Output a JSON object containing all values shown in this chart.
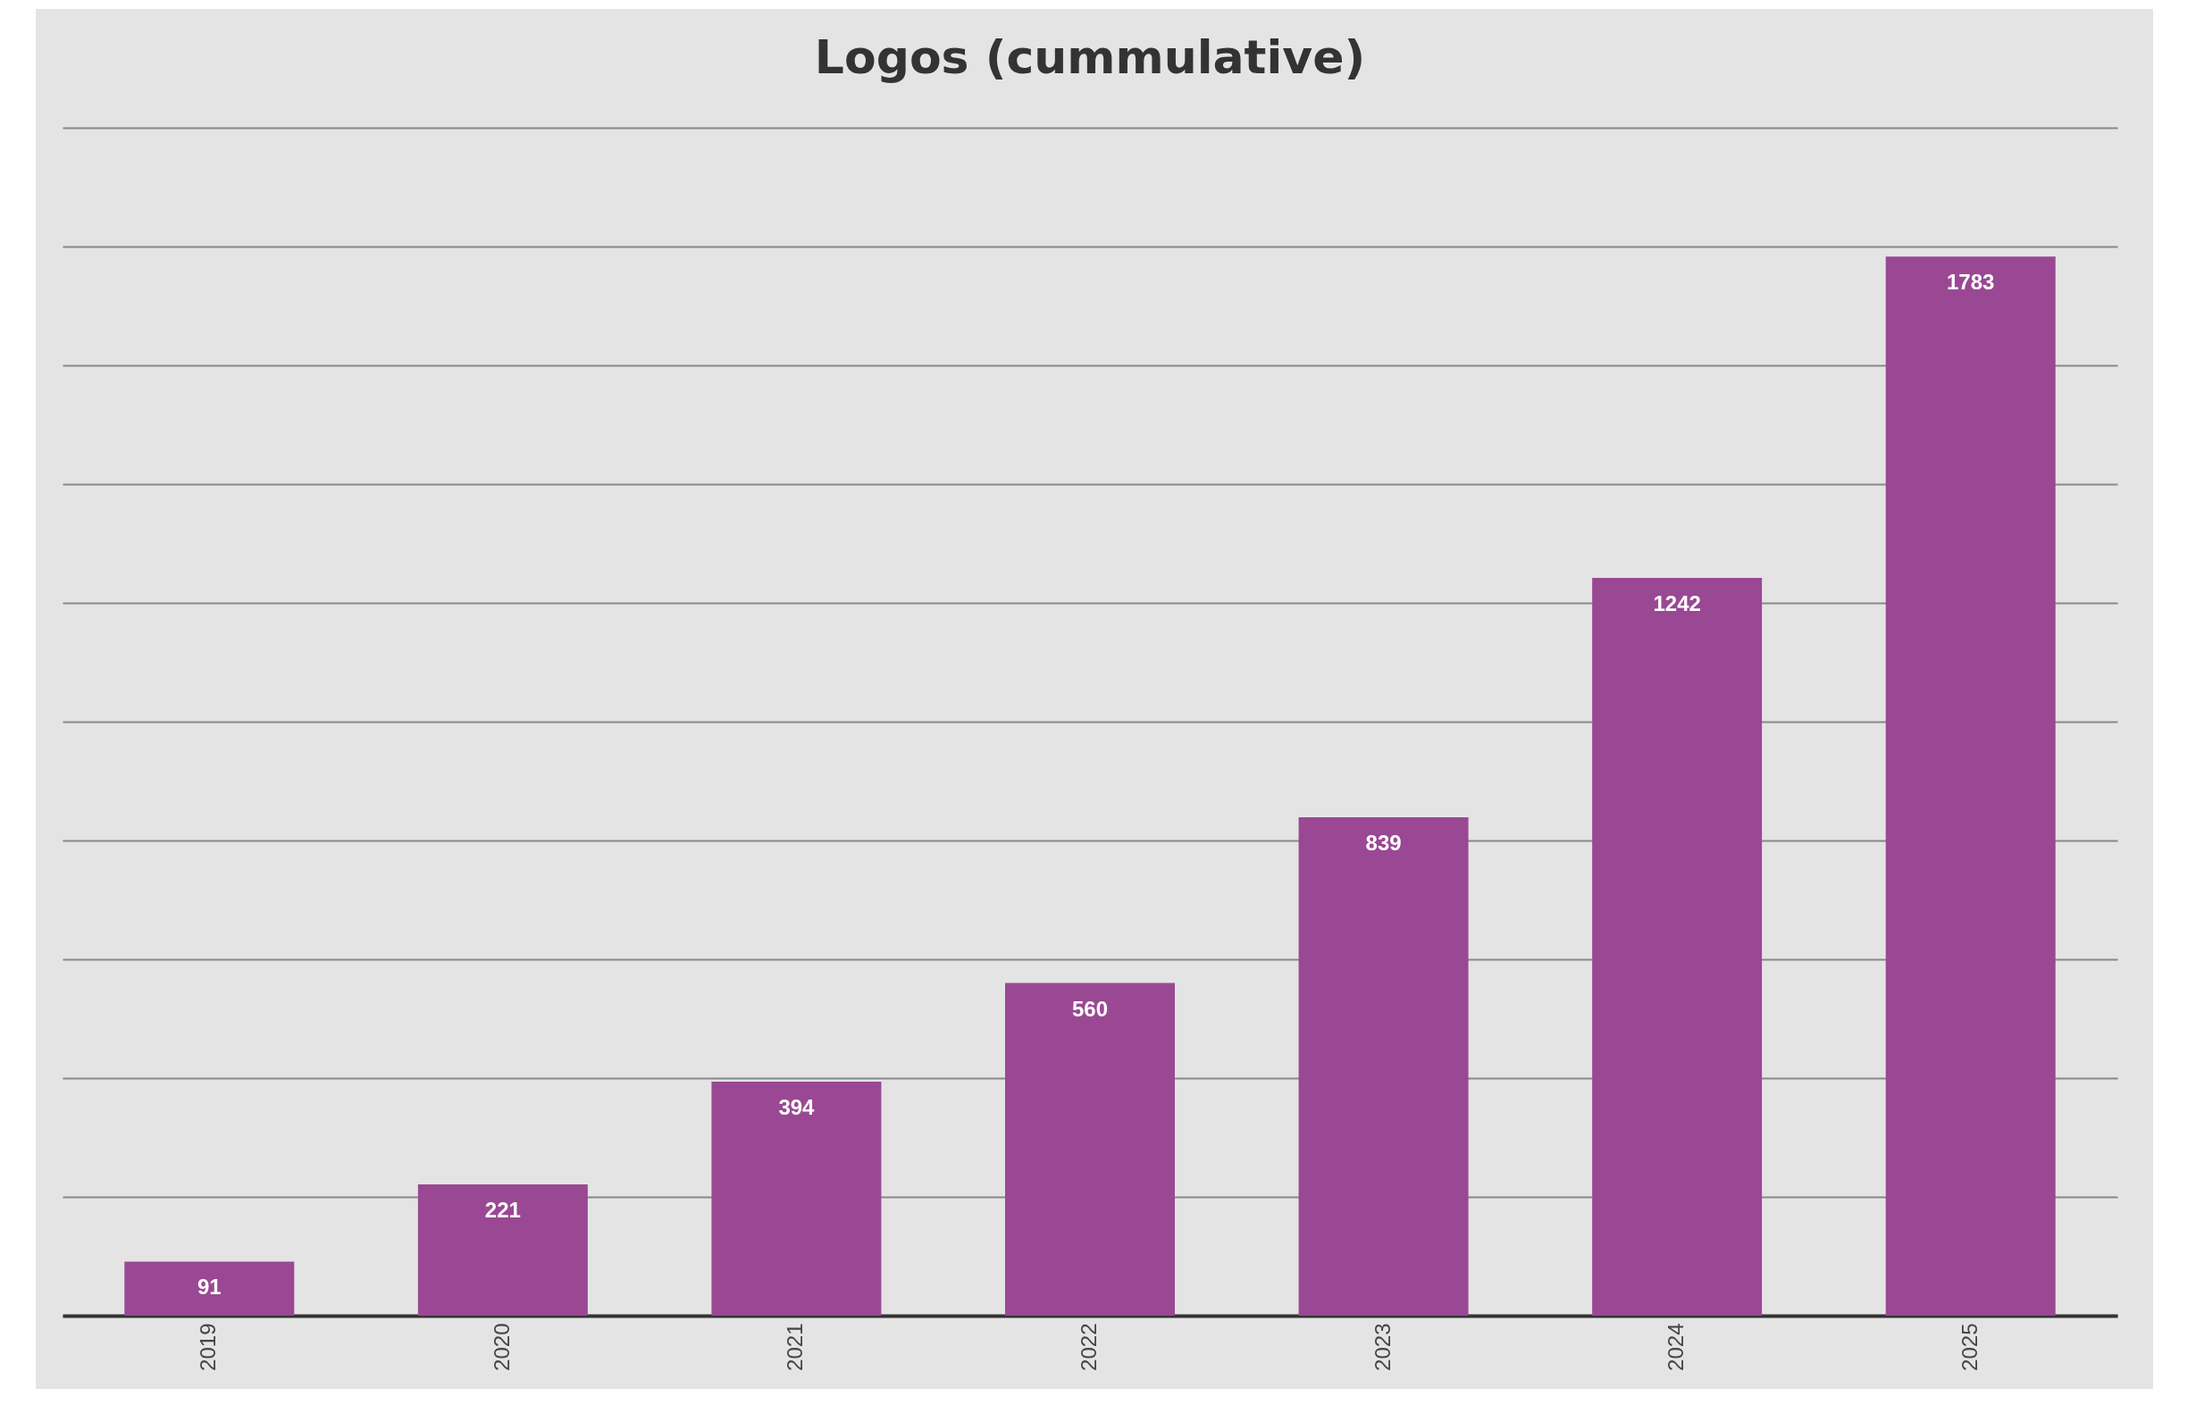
{
  "chart_data": {
    "type": "bar",
    "title": "Logos (cummulative)",
    "categories": [
      "2019",
      "2020",
      "2021",
      "2022",
      "2023",
      "2024",
      "2025"
    ],
    "values": [
      91,
      221,
      394,
      560,
      839,
      1242,
      1783
    ],
    "color": "#9a4893",
    "ylim": [
      0,
      2000
    ],
    "yticks": [
      {
        "value": 0,
        "label": null
      },
      {
        "value": 200,
        "label": null
      },
      {
        "value": 400,
        "label": null
      },
      {
        "value": 600,
        "label": null
      },
      {
        "value": 800,
        "label": null
      },
      {
        "value": 1000,
        "label": null
      },
      {
        "value": 1200,
        "label": null
      },
      {
        "value": 1400,
        "label": null
      },
      {
        "value": 1600,
        "label": null
      },
      {
        "value": 1800,
        "label": null
      },
      {
        "value": 2000,
        "label": null
      }
    ],
    "tick_labels": "x",
    "grid": "y",
    "data_labels": true
  }
}
